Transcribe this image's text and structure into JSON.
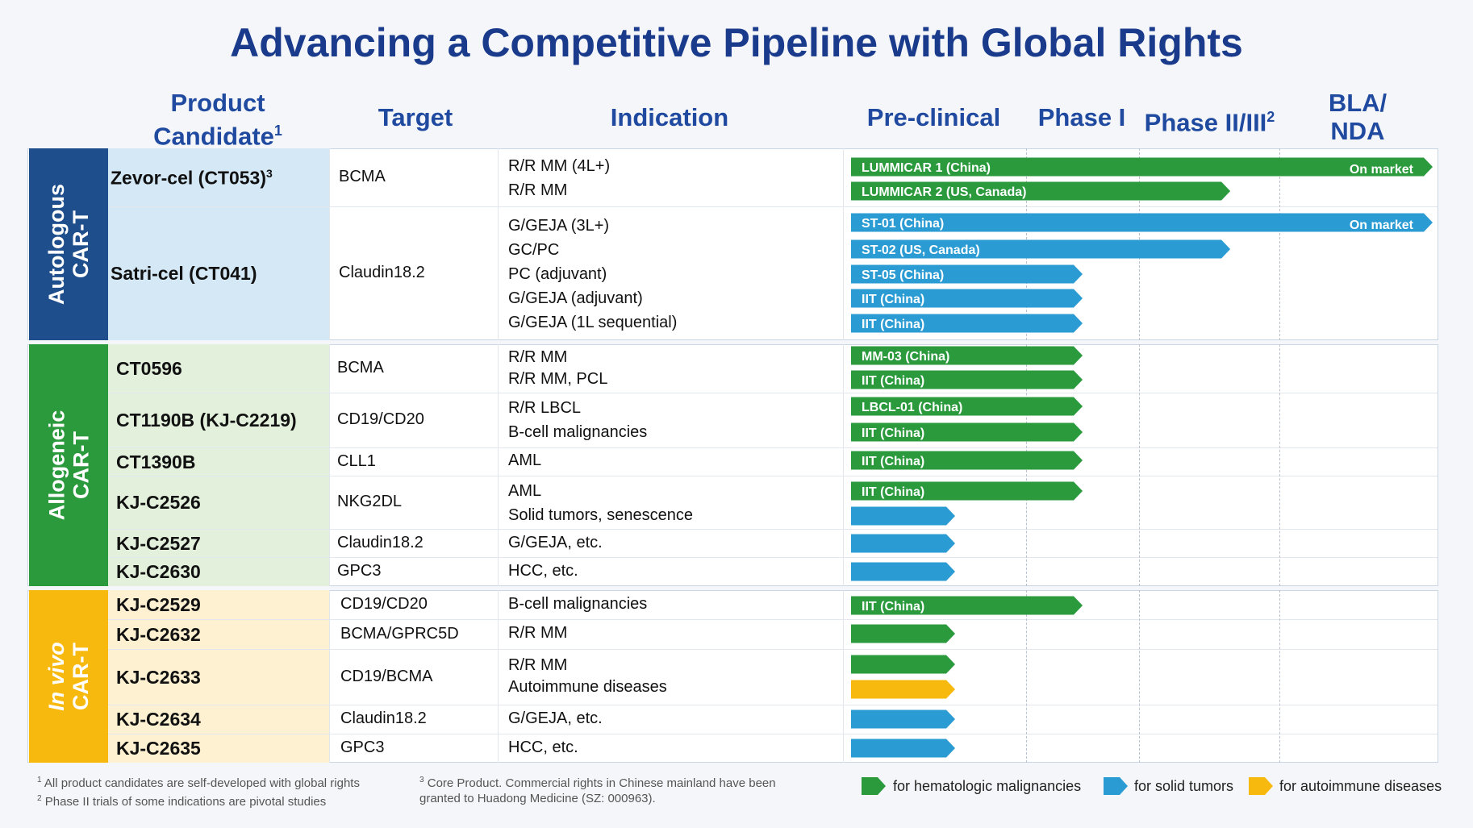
{
  "title": "Advancing a Competitive Pipeline with Global Rights",
  "headers": {
    "product": "Product Candidate",
    "product_sup": "1",
    "target": "Target",
    "indication": "Indication",
    "preclinical": "Pre-clinical",
    "phase1": "Phase I",
    "phase23": "Phase II/III",
    "phase23_sup": "2",
    "bla_line1": "BLA/",
    "bla_line2": "NDA"
  },
  "groups": [
    {
      "label_line1": "Autologous",
      "label_line2": "CAR-T",
      "color": "#1f4e8c",
      "light": "#d4e8f6"
    },
    {
      "label_line1": "Allogeneic",
      "label_line2": "CAR-T",
      "color": "#2a9a3d",
      "light": "#e2f0dc"
    },
    {
      "label_line1": "In vivo",
      "label_line2": "CAR-T",
      "color": "#f7b90e",
      "light": "#fdf1d2"
    }
  ],
  "products": [
    {
      "name": "Zevor-cel (CT053)",
      "sup": "3",
      "target": "BCMA",
      "indications": [
        "R/R MM (4L+)",
        "R/R MM"
      ]
    },
    {
      "name": "Satri-cel (CT041)",
      "sup": "",
      "target": "Claudin18.2",
      "indications": [
        "G/GEJA (3L+)",
        "GC/PC",
        "PC (adjuvant)",
        "G/GEJA (adjuvant)",
        "G/GEJA (1L sequential)"
      ]
    },
    {
      "name": "CT0596",
      "sup": "",
      "target": "BCMA",
      "indications": [
        "R/R MM",
        "R/R MM, PCL"
      ]
    },
    {
      "name": "CT1190B (KJ-C2219)",
      "sup": "",
      "target": "CD19/CD20",
      "indications": [
        "R/R LBCL",
        "B-cell malignancies"
      ]
    },
    {
      "name": "CT1390B",
      "sup": "",
      "target": "CLL1",
      "indications": [
        "AML"
      ]
    },
    {
      "name": "KJ-C2526",
      "sup": "",
      "target": "NKG2DL",
      "indications": [
        "AML",
        "Solid tumors, senescence"
      ]
    },
    {
      "name": "KJ-C2527",
      "sup": "",
      "target": "Claudin18.2",
      "indications": [
        "G/GEJA, etc."
      ]
    },
    {
      "name": "KJ-C2630",
      "sup": "",
      "target": "GPC3",
      "indications": [
        "HCC, etc."
      ]
    },
    {
      "name": "KJ-C2529",
      "sup": "",
      "target": "CD19/CD20",
      "indications": [
        "B-cell malignancies"
      ]
    },
    {
      "name": "KJ-C2632",
      "sup": "",
      "target": "BCMA/GPRC5D",
      "indications": [
        "R/R MM"
      ]
    },
    {
      "name": "KJ-C2633",
      "sup": "",
      "target": "CD19/BCMA",
      "indications": [
        "R/R MM",
        "Autoimmune diseases"
      ]
    },
    {
      "name": "KJ-C2634",
      "sup": "",
      "target": "Claudin18.2",
      "indications": [
        "G/GEJA, etc."
      ]
    },
    {
      "name": "KJ-C2635",
      "sup": "",
      "target": "GPC3",
      "indications": [
        "HCC, etc."
      ]
    }
  ],
  "chart_data": {
    "type": "bar",
    "orientation": "horizontal",
    "stages": [
      "Pre-clinical",
      "Phase I",
      "Phase II/III",
      "BLA/NDA"
    ],
    "stage_scale": "0 = start of Pre-clinical, 1 = start of Phase I, 2 = start of Phase II/III, 3 = start of BLA/NDA, 4 = end",
    "bars": [
      {
        "product": "Zevor-cel (CT053)",
        "indication": "R/R MM (4L+)",
        "label": "LUMMICAR 1 (China)",
        "category": "hematologic",
        "progress": 4.0,
        "marker": "On market"
      },
      {
        "product": "Zevor-cel (CT053)",
        "indication": "R/R MM",
        "label": "LUMMICAR 2 (US, Canada)",
        "category": "hematologic",
        "progress": 2.65,
        "marker": ""
      },
      {
        "product": "Satri-cel (CT041)",
        "indication": "G/GEJA (3L+)",
        "label": "ST-01 (China)",
        "category": "solid",
        "progress": 4.0,
        "marker": "On market"
      },
      {
        "product": "Satri-cel (CT041)",
        "indication": "GC/PC",
        "label": "ST-02 (US, Canada)",
        "category": "solid",
        "progress": 2.65,
        "marker": ""
      },
      {
        "product": "Satri-cel (CT041)",
        "indication": "PC (adjuvant)",
        "label": "ST-05 (China)",
        "category": "solid",
        "progress": 1.5,
        "marker": ""
      },
      {
        "product": "Satri-cel (CT041)",
        "indication": "G/GEJA (adjuvant)",
        "label": "IIT (China)",
        "category": "solid",
        "progress": 1.5,
        "marker": ""
      },
      {
        "product": "Satri-cel (CT041)",
        "indication": "G/GEJA (1L sequential)",
        "label": "IIT (China)",
        "category": "solid",
        "progress": 1.5,
        "marker": ""
      },
      {
        "product": "CT0596",
        "indication": "R/R MM",
        "label": "MM-03 (China)",
        "category": "hematologic",
        "progress": 1.5,
        "marker": ""
      },
      {
        "product": "CT0596",
        "indication": "R/R MM, PCL",
        "label": "IIT (China)",
        "category": "hematologic",
        "progress": 1.5,
        "marker": ""
      },
      {
        "product": "CT1190B (KJ-C2219)",
        "indication": "R/R LBCL",
        "label": "LBCL-01 (China)",
        "category": "hematologic",
        "progress": 1.5,
        "marker": ""
      },
      {
        "product": "CT1190B (KJ-C2219)",
        "indication": "B-cell malignancies",
        "label": "IIT (China)",
        "category": "hematologic",
        "progress": 1.5,
        "marker": ""
      },
      {
        "product": "CT1390B",
        "indication": "AML",
        "label": "IIT (China)",
        "category": "hematologic",
        "progress": 1.5,
        "marker": ""
      },
      {
        "product": "KJ-C2526",
        "indication": "AML",
        "label": "IIT (China)",
        "category": "hematologic",
        "progress": 1.5,
        "marker": ""
      },
      {
        "product": "KJ-C2526",
        "indication": "Solid tumors, senescence",
        "label": "",
        "category": "solid",
        "progress": 0.6,
        "marker": ""
      },
      {
        "product": "KJ-C2527",
        "indication": "G/GEJA, etc.",
        "label": "",
        "category": "solid",
        "progress": 0.6,
        "marker": ""
      },
      {
        "product": "KJ-C2630",
        "indication": "HCC, etc.",
        "label": "",
        "category": "solid",
        "progress": 0.6,
        "marker": ""
      },
      {
        "product": "KJ-C2529",
        "indication": "B-cell malignancies",
        "label": "IIT (China)",
        "category": "hematologic",
        "progress": 1.5,
        "marker": ""
      },
      {
        "product": "KJ-C2632",
        "indication": "R/R MM",
        "label": "",
        "category": "hematologic",
        "progress": 0.6,
        "marker": ""
      },
      {
        "product": "KJ-C2633",
        "indication": "R/R MM",
        "label": "",
        "category": "hematologic",
        "progress": 0.6,
        "marker": ""
      },
      {
        "product": "KJ-C2633",
        "indication": "Autoimmune diseases",
        "label": "",
        "category": "autoimmune",
        "progress": 0.6,
        "marker": ""
      },
      {
        "product": "KJ-C2634",
        "indication": "G/GEJA, etc.",
        "label": "",
        "category": "solid",
        "progress": 0.6,
        "marker": ""
      },
      {
        "product": "KJ-C2635",
        "indication": "HCC, etc.",
        "label": "",
        "category": "solid",
        "progress": 0.6,
        "marker": ""
      }
    ],
    "colors": {
      "hematologic": "#2a9a3d",
      "solid": "#2b9bd3",
      "autoimmune": "#f7b90e"
    }
  },
  "legend": [
    {
      "label": "for hematologic malignancies",
      "category": "hematologic"
    },
    {
      "label": "for solid tumors",
      "category": "solid"
    },
    {
      "label": "for autoimmune diseases",
      "category": "autoimmune"
    }
  ],
  "footnotes": {
    "n1_sup": "1",
    "n1": "All product candidates are self-developed with global rights",
    "n2_sup": "2",
    "n2": "Phase II trials of some indications are pivotal studies",
    "n3_sup": "3",
    "n3_line1": "Core Product. Commercial rights in Chinese mainland have been",
    "n3_line2": "granted to Huadong Medicine (SZ: 000963)."
  }
}
